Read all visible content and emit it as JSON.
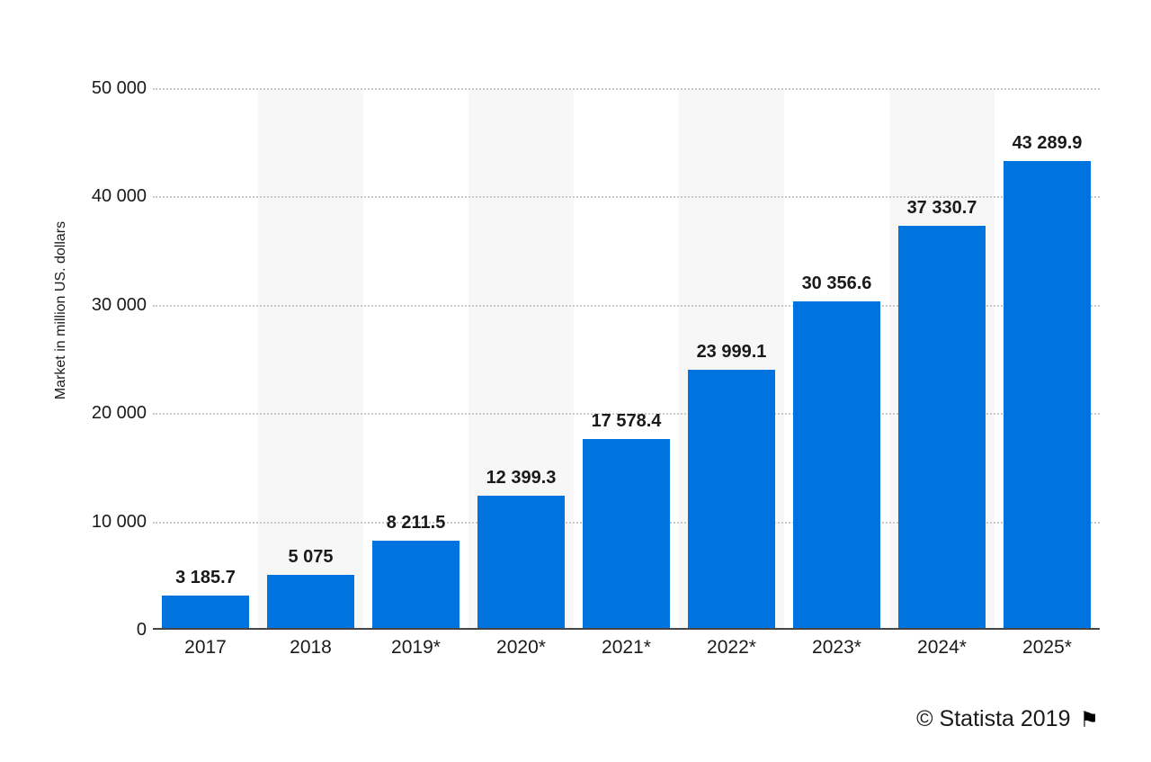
{
  "chart_data": {
    "type": "bar",
    "title": "",
    "categories": [
      "2017",
      "2018",
      "2019*",
      "2020*",
      "2021*",
      "2022*",
      "2023*",
      "2024*",
      "2025*"
    ],
    "values": [
      3185.7,
      5075,
      8211.5,
      12399.3,
      17578.4,
      23999.1,
      30356.6,
      37330.7,
      43289.9
    ],
    "value_labels": [
      "3 185.7",
      "5 075",
      "8 211.5",
      "12 399.3",
      "17 578.4",
      "23 999.1",
      "30 356.6",
      "37 330.7",
      "43 289.9"
    ],
    "xlabel": "",
    "ylabel": "Market in million US. dollars",
    "ylim": [
      0,
      50000
    ],
    "y_ticks": [
      {
        "value": 0,
        "label": "0"
      },
      {
        "value": 10000,
        "label": "10 000"
      },
      {
        "value": 20000,
        "label": "20 000"
      },
      {
        "value": 30000,
        "label": "30 000"
      },
      {
        "value": 40000,
        "label": "40 000"
      },
      {
        "value": 50000,
        "label": "50 000"
      }
    ],
    "grid": "horizontal-dotted",
    "legend_position": "none",
    "bar_color": "#0074de",
    "stripe_color": "#f7f7f7",
    "striped_category_indices": [
      1,
      3,
      5,
      7
    ]
  },
  "footer": {
    "credit": "© Statista 2019",
    "flag_icon": "⚑"
  }
}
